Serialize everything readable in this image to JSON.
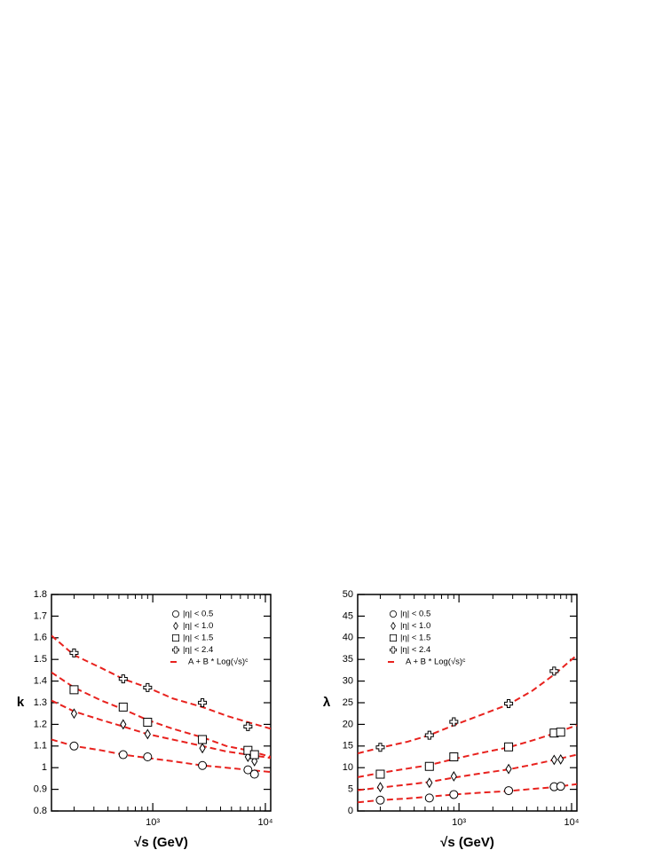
{
  "chart_data": [
    {
      "type": "scatter",
      "log_x": true,
      "legend": "upper right",
      "xlabel": "√s (GeV)",
      "ylabel": "k",
      "x": [
        200,
        546,
        900,
        2760,
        7000,
        8000
      ],
      "series": [
        {
          "name": "|η| < 0.5",
          "marker": "circle",
          "color": "#000000",
          "values": [
            1.1,
            1.06,
            1.05,
            1.01,
            0.99,
            0.97
          ]
        },
        {
          "name": "|η| < 1.0",
          "marker": "diamond",
          "color": "#000000",
          "values": [
            1.25,
            1.2,
            1.155,
            1.09,
            1.05,
            1.03
          ]
        },
        {
          "name": "|η| < 1.5",
          "marker": "square",
          "color": "#000000",
          "values": [
            1.36,
            1.28,
            1.21,
            1.13,
            1.08,
            1.06
          ]
        },
        {
          "name": "|η| < 2.4",
          "marker": "cross",
          "color": "#000000",
          "values": [
            1.53,
            1.41,
            1.37,
            1.3,
            1.19,
            null
          ]
        }
      ],
      "fit": {
        "name": "A + B * Log(√s)ᶜ",
        "color": "#e8221e",
        "x": [
          126,
          200,
          350,
          546,
          900,
          1500,
          2760,
          4500,
          7000,
          11150
        ],
        "curves": [
          [
            1.13,
            1.1,
            1.08,
            1.06,
            1.045,
            1.03,
            1.01,
            1.0,
            0.99,
            0.98
          ],
          [
            1.31,
            1.26,
            1.22,
            1.19,
            1.155,
            1.13,
            1.1,
            1.075,
            1.06,
            1.045
          ],
          [
            1.44,
            1.37,
            1.31,
            1.27,
            1.22,
            1.18,
            1.14,
            1.1,
            1.08,
            1.05
          ],
          [
            1.61,
            1.52,
            1.46,
            1.41,
            1.37,
            1.32,
            1.28,
            1.24,
            1.21,
            1.18
          ]
        ]
      },
      "xlim": [
        126,
        11150
      ],
      "xticks": [
        {
          "value": 1000,
          "label": "10³"
        },
        {
          "value": 10000,
          "label": "10⁴"
        }
      ],
      "xminorticks": [
        200,
        300,
        400,
        500,
        600,
        700,
        800,
        900,
        2000,
        3000,
        4000,
        5000,
        6000,
        7000,
        8000,
        9000
      ],
      "ylim": [
        0.8,
        1.8
      ],
      "yticks": [
        0.8,
        0.9,
        1,
        1.1,
        1.2,
        1.3,
        1.4,
        1.5,
        1.6,
        1.7,
        1.8
      ]
    },
    {
      "type": "scatter",
      "log_x": true,
      "legend": "upper left",
      "xlabel": "√s (GeV)",
      "ylabel": "λ",
      "x": [
        200,
        546,
        900,
        2760,
        7000,
        8000
      ],
      "series": [
        {
          "name": "|η| < 0.5",
          "marker": "circle",
          "color": "#000000",
          "values": [
            2.5,
            3,
            3.8,
            4.7,
            5.6,
            5.7
          ]
        },
        {
          "name": "|η| < 1.0",
          "marker": "diamond",
          "color": "#000000",
          "values": [
            5.5,
            6.5,
            8,
            9.7,
            11.8,
            11.9
          ]
        },
        {
          "name": "|η| < 1.5",
          "marker": "square",
          "color": "#000000",
          "values": [
            8.5,
            10.3,
            12.5,
            14.8,
            18,
            18.2
          ]
        },
        {
          "name": "|η| < 2.4",
          "marker": "cross",
          "color": "#000000",
          "values": [
            14.7,
            17.5,
            20.6,
            24.8,
            32.3,
            null
          ]
        }
      ],
      "fit": {
        "name": "A + B * Log(√s)ᶜ",
        "color": "#e8221e",
        "x": [
          126,
          200,
          350,
          546,
          900,
          1500,
          2760,
          4500,
          7000,
          11150
        ],
        "curves": [
          [
            2.0,
            2.5,
            2.9,
            3.3,
            3.8,
            4.2,
            4.6,
            5.1,
            5.5,
            6.2
          ],
          [
            4.8,
            5.4,
            6.1,
            6.7,
            7.7,
            8.6,
            9.6,
            10.7,
            11.8,
            13
          ],
          [
            7.8,
            8.8,
            9.8,
            10.6,
            12.0,
            13.3,
            14.7,
            16.3,
            17.9,
            19.8
          ],
          [
            13.3,
            14.6,
            16.0,
            17.5,
            19.8,
            22.0,
            24.6,
            27.8,
            31.5,
            36
          ]
        ]
      },
      "xlim": [
        126,
        11150
      ],
      "xticks": [
        {
          "value": 1000,
          "label": "10³"
        },
        {
          "value": 10000,
          "label": "10⁴"
        }
      ],
      "xminorticks": [
        200,
        300,
        400,
        500,
        600,
        700,
        800,
        900,
        2000,
        3000,
        4000,
        5000,
        6000,
        7000,
        8000,
        9000
      ],
      "ylim": [
        0,
        50
      ],
      "yticks": [
        0,
        5,
        10,
        15,
        20,
        25,
        30,
        35,
        40,
        45,
        50
      ]
    }
  ]
}
